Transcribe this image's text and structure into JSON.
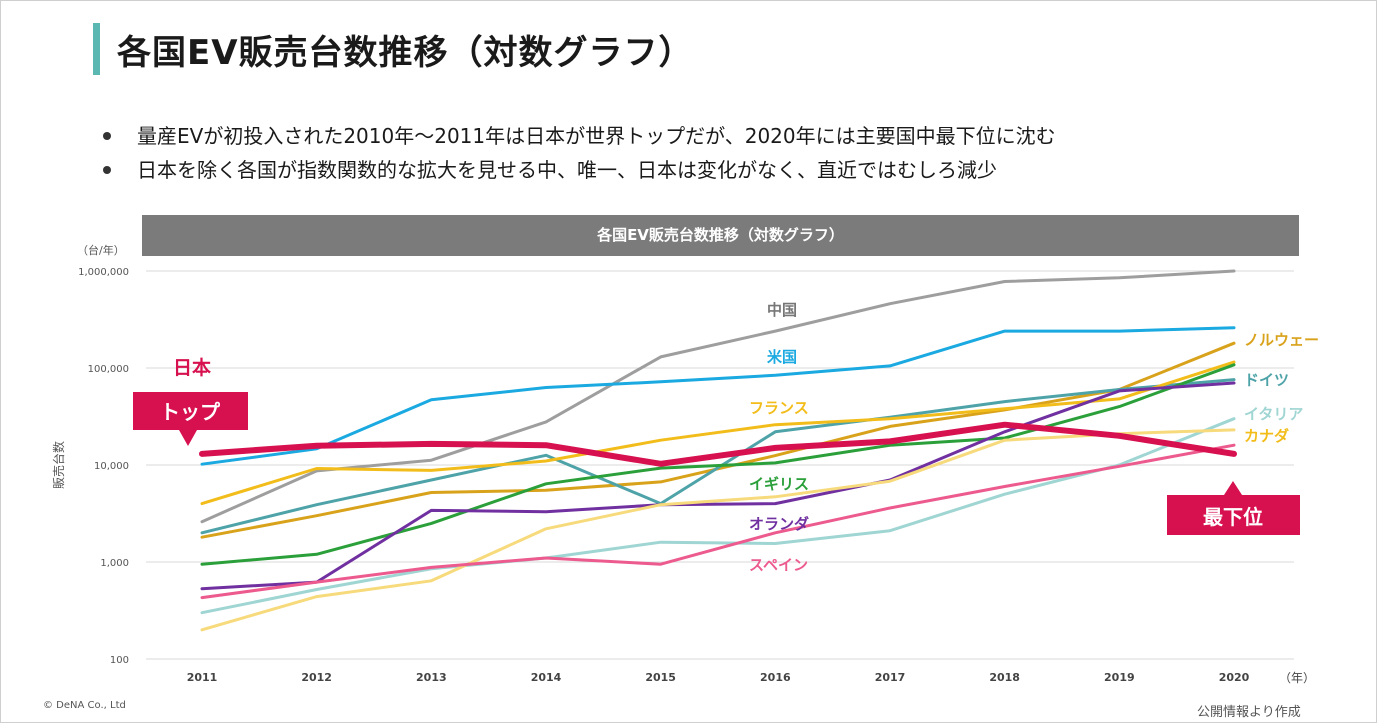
{
  "page": {
    "title": "各国EV販売台数推移（対数グラフ）",
    "bullets": [
      "量産EVが初投入された2010年〜2011年は日本が世界トップだが、2020年には主要国中最下位に沈む",
      "日本を除く各国が指数関数的な拡大を見せる中、唯一、日本は変化がなく、直近ではむしろ減少"
    ],
    "footer_left": "© DeNA Co., Ltd",
    "footer_right": "公開情報より作成"
  },
  "colors": {
    "title_accent": "#5bb7b2",
    "callout": "#d7104f",
    "header_bg": "#7b7b7b"
  },
  "callouts": {
    "top": "トップ",
    "bottom": "最下位"
  },
  "chart_data": {
    "type": "line",
    "title": "各国EV販売台数推移（対数グラフ）",
    "ylabel": "販売台数",
    "yunit": "（台/年）",
    "xunit": "（年）",
    "yscale": "log",
    "ylim": [
      100,
      1000000
    ],
    "yticks": [
      {
        "v": 1000000,
        "label": "1,000,000"
      },
      {
        "v": 100000,
        "label": "100,000"
      },
      {
        "v": 10000,
        "label": "10,000"
      },
      {
        "v": 1000,
        "label": "1,000"
      },
      {
        "v": 100,
        "label": "100"
      }
    ],
    "categories": [
      "2011",
      "2012",
      "2013",
      "2014",
      "2015",
      "2016",
      "2017",
      "2018",
      "2019",
      "2020"
    ],
    "series": [
      {
        "name": "中国",
        "color": "#9e9e9e",
        "label_color": "#777777",
        "width": 3,
        "values": [
          2600,
          8700,
          11200,
          27800,
          130000,
          240000,
          460000,
          780000,
          850000,
          1000000
        ]
      },
      {
        "name": "米国",
        "color": "#1aa9e0",
        "label_color": "#1aa9e0",
        "width": 3,
        "values": [
          10200,
          14700,
          47000,
          63000,
          72000,
          84000,
          105000,
          240000,
          240000,
          260000
        ]
      },
      {
        "name": "ノルウェー",
        "color": "#d9a21b",
        "label_color": "#d9a21b",
        "width": 3,
        "values": [
          1800,
          3000,
          5200,
          5500,
          6700,
          12500,
          25000,
          37000,
          60000,
          180000
        ]
      },
      {
        "name": "ドイツ",
        "color": "#4ea3a8",
        "label_color": "#4ea3a8",
        "width": 3,
        "values": [
          2000,
          3900,
          7000,
          12600,
          4000,
          22000,
          31000,
          45000,
          60000,
          76000
        ]
      },
      {
        "name": "フランス",
        "color": "#f2bd1a",
        "label_color": "#f2bd1a",
        "width": 3,
        "values": [
          4000,
          9200,
          8800,
          11000,
          18000,
          26000,
          30000,
          38000,
          48000,
          115000
        ]
      },
      {
        "name": "イギリス",
        "color": "#2ba03a",
        "label_color": "#2ba03a",
        "width": 3,
        "values": [
          950,
          1200,
          2500,
          6400,
          9300,
          10500,
          16000,
          19000,
          40000,
          108000
        ]
      },
      {
        "name": "オランダ",
        "color": "#7030a0",
        "label_color": "#7030a0",
        "width": 3,
        "values": [
          530,
          620,
          3400,
          3300,
          3900,
          4000,
          7000,
          22000,
          58000,
          70000
        ]
      },
      {
        "name": "イタリア",
        "color": "#9fd5d2",
        "label_color": "#9fd5d2",
        "width": 3,
        "values": [
          300,
          520,
          850,
          1100,
          1600,
          1550,
          2100,
          5000,
          10000,
          30000
        ]
      },
      {
        "name": "カナダ",
        "color": "#f7da7b",
        "label_color": "#f2bd1a",
        "width": 3,
        "values": [
          200,
          440,
          640,
          2200,
          3900,
          4700,
          6800,
          18000,
          21000,
          23000
        ]
      },
      {
        "name": "スペイン",
        "color": "#ec5a8e",
        "label_color": "#ec5a8e",
        "width": 3,
        "values": [
          430,
          620,
          880,
          1100,
          950,
          2000,
          3600,
          6000,
          9700,
          16000
        ]
      },
      {
        "name": "日本",
        "color": "#d7104f",
        "label_color": "#d7104f",
        "width": 6,
        "values": [
          13000,
          15800,
          16500,
          16000,
          10300,
          15000,
          17500,
          26000,
          20000,
          13000
        ]
      }
    ]
  }
}
